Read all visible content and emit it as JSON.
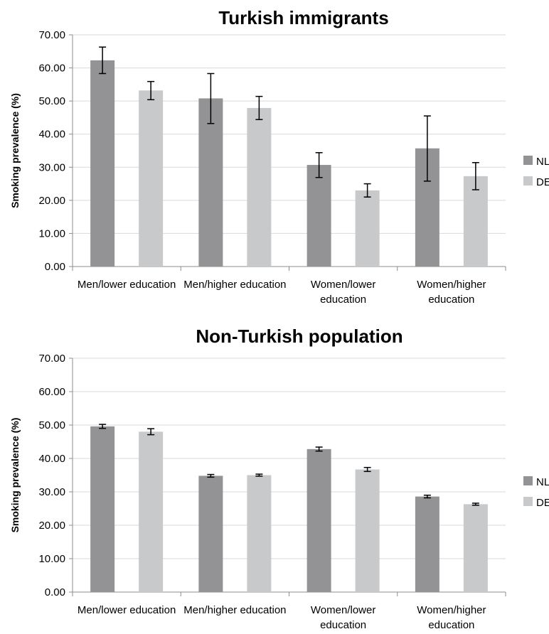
{
  "chart_data": [
    {
      "type": "bar",
      "title": "Turkish immigrants",
      "ylabel": "Smoking prevalence (%)",
      "xlabel": "",
      "ylim": [
        0,
        70
      ],
      "yticks": [
        "0.00",
        "10.00",
        "20.00",
        "30.00",
        "40.00",
        "50.00",
        "60.00",
        "70.00"
      ],
      "categories": [
        [
          "Men/lower education"
        ],
        [
          "Men/higher education"
        ],
        [
          "Women/lower",
          "education"
        ],
        [
          "Women/higher",
          "education"
        ]
      ],
      "series": [
        {
          "name": "NL",
          "color": "#939395",
          "values": [
            62.3,
            50.8,
            30.7,
            35.7
          ],
          "err_low": [
            58.3,
            43.2,
            26.9,
            25.8
          ],
          "err_high": [
            66.3,
            58.3,
            34.4,
            45.5
          ]
        },
        {
          "name": "DE",
          "color": "#c8c9cb",
          "values": [
            53.2,
            47.9,
            23.0,
            27.3
          ],
          "err_low": [
            50.4,
            44.4,
            21.0,
            23.2
          ],
          "err_high": [
            55.9,
            51.4,
            25.0,
            31.4
          ]
        }
      ],
      "grid": true,
      "legend": "right"
    },
    {
      "type": "bar",
      "title": "Non-Turkish population",
      "ylabel": "Smoking prevalence (%)",
      "xlabel": "",
      "ylim": [
        0,
        70
      ],
      "yticks": [
        "0.00",
        "10.00",
        "20.00",
        "30.00",
        "40.00",
        "50.00",
        "60.00",
        "70.00"
      ],
      "categories": [
        [
          "Men/lower education"
        ],
        [
          "Men/higher education"
        ],
        [
          "Women/lower",
          "education"
        ],
        [
          "Women/higher",
          "education"
        ]
      ],
      "series": [
        {
          "name": "NL",
          "color": "#939395",
          "values": [
            49.6,
            34.8,
            42.8,
            28.6
          ],
          "err_low": [
            49.0,
            34.4,
            42.2,
            28.2
          ],
          "err_high": [
            50.2,
            35.2,
            43.4,
            29.0
          ]
        },
        {
          "name": "DE",
          "color": "#c8c9cb",
          "values": [
            48.0,
            35.0,
            36.7,
            26.3
          ],
          "err_low": [
            47.1,
            34.7,
            36.1,
            26.0
          ],
          "err_high": [
            48.9,
            35.3,
            37.3,
            26.6
          ]
        }
      ],
      "grid": true,
      "legend": "right"
    }
  ]
}
